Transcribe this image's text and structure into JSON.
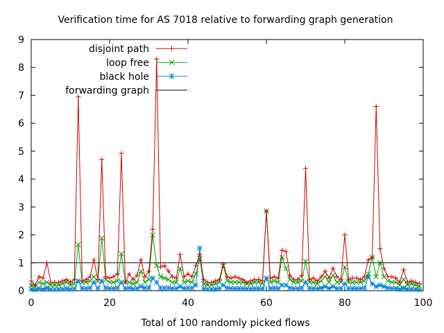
{
  "chart_data": {
    "type": "line",
    "title": "Verification time for AS 7018 relative to forwarding graph generation",
    "xlabel": "Total of 100 randomly picked flows",
    "ylabel": "",
    "xlim": [
      0,
      100
    ],
    "ylim": [
      0,
      9
    ],
    "xticks": [
      "0",
      "20",
      "40",
      "60",
      "80",
      "100"
    ],
    "yticks": [
      "0",
      "1",
      "2",
      "3",
      "4",
      "5",
      "6",
      "7",
      "8",
      "9"
    ],
    "grid": false,
    "legend_position": "top-left",
    "x": [
      0,
      1,
      2,
      3,
      4,
      5,
      6,
      7,
      8,
      9,
      10,
      11,
      12,
      13,
      14,
      15,
      16,
      17,
      18,
      19,
      20,
      21,
      22,
      23,
      24,
      25,
      26,
      27,
      28,
      29,
      30,
      31,
      32,
      33,
      34,
      35,
      36,
      37,
      38,
      39,
      40,
      41,
      42,
      43,
      44,
      45,
      46,
      47,
      48,
      49,
      50,
      51,
      52,
      53,
      54,
      55,
      56,
      57,
      58,
      59,
      60,
      61,
      62,
      63,
      64,
      65,
      66,
      67,
      68,
      69,
      70,
      71,
      72,
      73,
      74,
      75,
      76,
      77,
      78,
      79,
      80,
      81,
      82,
      83,
      84,
      85,
      86,
      87,
      88,
      89,
      90,
      91,
      92,
      93,
      94,
      95,
      96,
      97,
      98,
      99
    ],
    "series": [
      {
        "name": "disjoint path",
        "color": "#cc0000",
        "marker": "plus",
        "values": [
          0.35,
          0.2,
          0.5,
          0.45,
          1.0,
          0.3,
          0.3,
          0.3,
          0.35,
          0.4,
          0.3,
          0.4,
          6.95,
          0.35,
          0.4,
          0.5,
          1.1,
          0.4,
          4.7,
          0.5,
          0.45,
          0.5,
          0.6,
          4.92,
          0.3,
          0.6,
          0.4,
          0.55,
          1.1,
          0.5,
          0.7,
          2.2,
          8.3,
          0.85,
          0.9,
          0.7,
          0.5,
          0.45,
          1.3,
          0.5,
          0.6,
          0.5,
          0.9,
          1.3,
          0.4,
          0.3,
          0.3,
          0.35,
          0.4,
          0.95,
          0.5,
          0.45,
          0.5,
          0.45,
          0.4,
          0.3,
          0.35,
          0.4,
          0.4,
          0.35,
          2.85,
          0.45,
          0.5,
          0.45,
          1.45,
          1.4,
          0.55,
          0.4,
          0.4,
          0.55,
          4.38,
          0.4,
          0.45,
          0.35,
          0.5,
          0.7,
          0.45,
          0.8,
          0.5,
          0.4,
          2.0,
          0.4,
          0.45,
          0.45,
          0.4,
          0.5,
          1.1,
          1.2,
          6.6,
          1.5,
          0.8,
          0.5,
          0.5,
          0.45,
          0.3,
          0.75,
          0.3,
          0.35,
          0.3,
          0.25
        ]
      },
      {
        "name": "loop free",
        "color": "#00a000",
        "marker": "cross",
        "values": [
          0.2,
          0.15,
          0.3,
          0.25,
          0.3,
          0.2,
          0.2,
          0.2,
          0.25,
          0.3,
          0.2,
          0.25,
          1.65,
          0.3,
          0.3,
          0.35,
          0.5,
          0.35,
          1.88,
          0.4,
          0.3,
          0.3,
          0.35,
          1.32,
          0.3,
          0.3,
          0.25,
          0.3,
          0.7,
          0.3,
          0.4,
          2.0,
          0.9,
          0.5,
          0.45,
          0.4,
          0.3,
          0.3,
          0.8,
          0.3,
          0.35,
          0.3,
          0.6,
          1.15,
          0.25,
          0.2,
          0.2,
          0.25,
          0.3,
          0.9,
          0.35,
          0.3,
          0.3,
          0.3,
          0.3,
          0.25,
          0.25,
          0.3,
          0.3,
          0.25,
          2.85,
          0.3,
          0.35,
          0.3,
          1.2,
          0.8,
          0.4,
          0.3,
          0.3,
          0.35,
          1.05,
          0.3,
          0.3,
          0.25,
          0.35,
          0.5,
          0.3,
          0.55,
          0.3,
          0.3,
          0.85,
          0.3,
          0.3,
          0.3,
          0.3,
          0.35,
          0.6,
          1.2,
          0.5,
          1.0,
          0.5,
          0.35,
          0.3,
          0.3,
          0.2,
          0.4,
          0.2,
          0.25,
          0.2,
          0.15
        ]
      },
      {
        "name": "black hole",
        "color": "#0080e0",
        "marker": "star",
        "values": [
          0.05,
          0.03,
          0.08,
          0.05,
          0.1,
          0.05,
          0.05,
          0.05,
          0.06,
          0.08,
          0.05,
          0.06,
          0.35,
          0.08,
          0.08,
          0.1,
          0.3,
          0.08,
          0.35,
          0.1,
          0.08,
          0.08,
          0.1,
          0.3,
          0.08,
          0.1,
          0.07,
          0.08,
          0.15,
          0.1,
          0.1,
          0.45,
          0.3,
          0.1,
          0.1,
          0.1,
          0.08,
          0.08,
          0.15,
          0.08,
          0.1,
          0.1,
          0.2,
          1.52,
          0.07,
          0.05,
          0.05,
          0.06,
          0.08,
          0.2,
          0.1,
          0.08,
          0.08,
          0.08,
          0.08,
          0.07,
          0.07,
          0.08,
          0.08,
          0.07,
          0.45,
          0.08,
          0.1,
          0.08,
          0.2,
          0.2,
          0.1,
          0.08,
          0.08,
          0.1,
          0.3,
          0.08,
          0.08,
          0.07,
          0.1,
          0.15,
          0.08,
          0.15,
          0.08,
          0.08,
          0.25,
          0.08,
          0.08,
          0.08,
          0.08,
          0.1,
          0.5,
          0.25,
          0.15,
          0.2,
          0.15,
          0.1,
          0.08,
          0.08,
          0.05,
          0.1,
          0.05,
          0.06,
          0.05,
          0.03
        ]
      },
      {
        "name": "forwarding graph",
        "color": "#000000",
        "marker": "none",
        "values": [
          1,
          1,
          1,
          1,
          1,
          1,
          1,
          1,
          1,
          1,
          1,
          1,
          1,
          1,
          1,
          1,
          1,
          1,
          1,
          1,
          1,
          1,
          1,
          1,
          1,
          1,
          1,
          1,
          1,
          1,
          1,
          1,
          1,
          1,
          1,
          1,
          1,
          1,
          1,
          1,
          1,
          1,
          1,
          1,
          1,
          1,
          1,
          1,
          1,
          1,
          1,
          1,
          1,
          1,
          1,
          1,
          1,
          1,
          1,
          1,
          1,
          1,
          1,
          1,
          1,
          1,
          1,
          1,
          1,
          1,
          1,
          1,
          1,
          1,
          1,
          1,
          1,
          1,
          1,
          1,
          1,
          1,
          1,
          1,
          1,
          1,
          1,
          1,
          1,
          1,
          1,
          1,
          1,
          1,
          1,
          1,
          1,
          1,
          1,
          1
        ]
      }
    ]
  }
}
